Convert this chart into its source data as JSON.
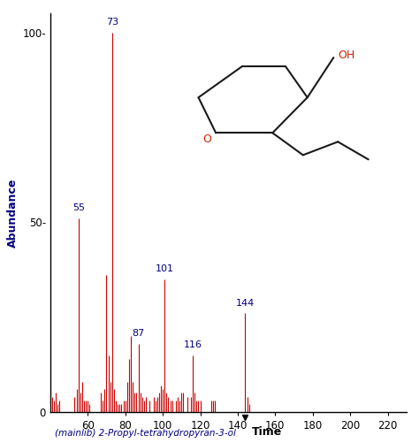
{
  "title": "",
  "xlabel_main": "Time",
  "xlabel_lib": "(mainlib) 2-Propyl-tetrahydropyran-3-ol",
  "ylabel": "Abundance",
  "xlim": [
    40,
    230
  ],
  "ylim": [
    0,
    105
  ],
  "xticks": [
    60,
    80,
    100,
    120,
    140,
    160,
    180,
    200,
    220
  ],
  "yticks": [
    0,
    50,
    100
  ],
  "background_color": "#ffffff",
  "peaks": [
    {
      "mz": 41,
      "intensity": 4
    },
    {
      "mz": 42,
      "intensity": 3
    },
    {
      "mz": 43,
      "intensity": 5
    },
    {
      "mz": 44,
      "intensity": 2
    },
    {
      "mz": 45,
      "intensity": 3
    },
    {
      "mz": 53,
      "intensity": 4
    },
    {
      "mz": 54,
      "intensity": 6
    },
    {
      "mz": 55,
      "intensity": 51
    },
    {
      "mz": 56,
      "intensity": 5
    },
    {
      "mz": 57,
      "intensity": 8
    },
    {
      "mz": 58,
      "intensity": 3
    },
    {
      "mz": 59,
      "intensity": 3
    },
    {
      "mz": 60,
      "intensity": 3
    },
    {
      "mz": 61,
      "intensity": 2
    },
    {
      "mz": 67,
      "intensity": 5
    },
    {
      "mz": 68,
      "intensity": 3
    },
    {
      "mz": 69,
      "intensity": 6
    },
    {
      "mz": 70,
      "intensity": 36
    },
    {
      "mz": 71,
      "intensity": 15
    },
    {
      "mz": 72,
      "intensity": 8
    },
    {
      "mz": 73,
      "intensity": 100
    },
    {
      "mz": 74,
      "intensity": 6
    },
    {
      "mz": 75,
      "intensity": 3
    },
    {
      "mz": 76,
      "intensity": 2
    },
    {
      "mz": 77,
      "intensity": 2
    },
    {
      "mz": 78,
      "intensity": 2
    },
    {
      "mz": 79,
      "intensity": 3
    },
    {
      "mz": 80,
      "intensity": 3
    },
    {
      "mz": 81,
      "intensity": 8
    },
    {
      "mz": 82,
      "intensity": 14
    },
    {
      "mz": 83,
      "intensity": 20
    },
    {
      "mz": 84,
      "intensity": 8
    },
    {
      "mz": 85,
      "intensity": 5
    },
    {
      "mz": 86,
      "intensity": 5
    },
    {
      "mz": 87,
      "intensity": 18
    },
    {
      "mz": 88,
      "intensity": 5
    },
    {
      "mz": 89,
      "intensity": 4
    },
    {
      "mz": 90,
      "intensity": 3
    },
    {
      "mz": 91,
      "intensity": 4
    },
    {
      "mz": 93,
      "intensity": 3
    },
    {
      "mz": 95,
      "intensity": 4
    },
    {
      "mz": 96,
      "intensity": 3
    },
    {
      "mz": 97,
      "intensity": 4
    },
    {
      "mz": 98,
      "intensity": 5
    },
    {
      "mz": 99,
      "intensity": 7
    },
    {
      "mz": 100,
      "intensity": 6
    },
    {
      "mz": 101,
      "intensity": 35
    },
    {
      "mz": 102,
      "intensity": 5
    },
    {
      "mz": 103,
      "intensity": 4
    },
    {
      "mz": 104,
      "intensity": 3
    },
    {
      "mz": 105,
      "intensity": 3
    },
    {
      "mz": 107,
      "intensity": 3
    },
    {
      "mz": 108,
      "intensity": 4
    },
    {
      "mz": 109,
      "intensity": 3
    },
    {
      "mz": 110,
      "intensity": 5
    },
    {
      "mz": 111,
      "intensity": 5
    },
    {
      "mz": 113,
      "intensity": 4
    },
    {
      "mz": 115,
      "intensity": 4
    },
    {
      "mz": 116,
      "intensity": 15
    },
    {
      "mz": 117,
      "intensity": 5
    },
    {
      "mz": 118,
      "intensity": 3
    },
    {
      "mz": 119,
      "intensity": 3
    },
    {
      "mz": 120,
      "intensity": 3
    },
    {
      "mz": 126,
      "intensity": 3
    },
    {
      "mz": 127,
      "intensity": 3
    },
    {
      "mz": 128,
      "intensity": 3
    },
    {
      "mz": 144,
      "intensity": 26
    },
    {
      "mz": 145,
      "intensity": 4
    },
    {
      "mz": 146,
      "intensity": 2
    }
  ],
  "labeled_peaks": [
    {
      "mz": 55,
      "intensity": 51,
      "label": "55"
    },
    {
      "mz": 73,
      "intensity": 100,
      "label": "73"
    },
    {
      "mz": 87,
      "intensity": 18,
      "label": "87"
    },
    {
      "mz": 101,
      "intensity": 35,
      "label": "101"
    },
    {
      "mz": 116,
      "intensity": 15,
      "label": "116"
    },
    {
      "mz": 144,
      "intensity": 26,
      "label": "144"
    }
  ],
  "bar_color": "#cc0000",
  "label_color": "#000080",
  "axis_color": "#000000",
  "mol_ring_color": "#1a1a1a",
  "mol_O_color": "#cc2200",
  "mol_OH_color": "#cc2200"
}
